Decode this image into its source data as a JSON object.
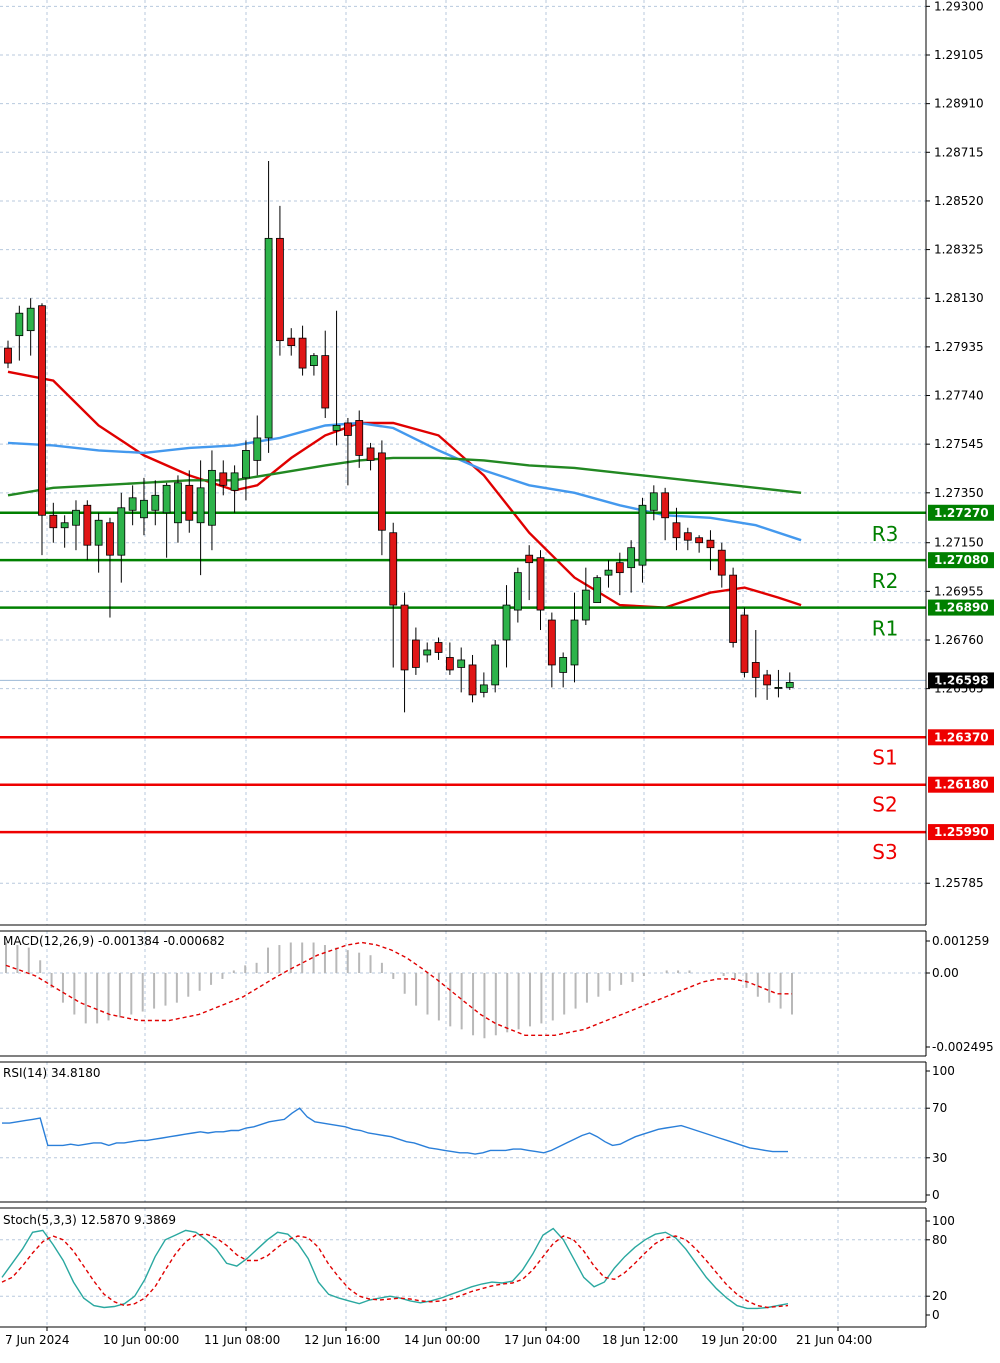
{
  "chart_data": {
    "type": "candlestick",
    "symbol_timeframe": "",
    "price_axis": {
      "ticks": [
        "1.29300",
        "1.29105",
        "1.28910",
        "1.28715",
        "1.28520",
        "1.28325",
        "1.28130",
        "1.27935",
        "1.27740",
        "1.27545",
        "1.27350",
        "1.27150",
        "1.26955",
        "1.26760",
        "1.26565",
        "1.25785"
      ],
      "range": [
        1.2574,
        1.2931
      ]
    },
    "time_axis": {
      "ticks": [
        "7 Jun 2024",
        "10 Jun 00:00",
        "11 Jun 08:00",
        "12 Jun 16:00",
        "14 Jun 00:00",
        "17 Jun 04:00",
        "18 Jun 12:00",
        "19 Jun 20:00",
        "21 Jun 04:00"
      ]
    },
    "current_price": {
      "label": "1.26598",
      "value": 1.26598,
      "color": "#000000"
    },
    "levels": [
      {
        "name": "R3",
        "value": 1.2727,
        "label": "1.27270",
        "color": "#008000"
      },
      {
        "name": "R2",
        "value": 1.2708,
        "label": "1.27080",
        "color": "#008000"
      },
      {
        "name": "R1",
        "value": 1.2689,
        "label": "1.26890",
        "color": "#008000"
      },
      {
        "name": "S1",
        "value": 1.2637,
        "label": "1.26370",
        "color": "#ee0000"
      },
      {
        "name": "S2",
        "value": 1.2618,
        "label": "1.26180",
        "color": "#ee0000"
      },
      {
        "name": "S3",
        "value": 1.2599,
        "label": "1.25990",
        "color": "#ee0000"
      }
    ],
    "candles": [
      [
        1.2793,
        1.2796,
        1.2785,
        1.2787
      ],
      [
        1.2798,
        1.281,
        1.2788,
        1.2807
      ],
      [
        1.28,
        1.2813,
        1.279,
        1.2809
      ],
      [
        1.281,
        1.2811,
        1.271,
        1.2726
      ],
      [
        1.2726,
        1.2731,
        1.2715,
        1.2721
      ],
      [
        1.2721,
        1.2726,
        1.2713,
        1.2723
      ],
      [
        1.2722,
        1.2732,
        1.2712,
        1.2728
      ],
      [
        1.273,
        1.2732,
        1.2708,
        1.2714
      ],
      [
        1.2714,
        1.2727,
        1.2703,
        1.2724
      ],
      [
        1.2723,
        1.2725,
        1.2685,
        1.271
      ],
      [
        1.271,
        1.2735,
        1.2699,
        1.2729
      ],
      [
        1.2728,
        1.2738,
        1.2722,
        1.2733
      ],
      [
        1.2725,
        1.2741,
        1.2718,
        1.2732
      ],
      [
        1.2728,
        1.274,
        1.2722,
        1.2734
      ],
      [
        1.2727,
        1.2739,
        1.2709,
        1.2738
      ],
      [
        1.2723,
        1.2742,
        1.2715,
        1.2739
      ],
      [
        1.2738,
        1.2744,
        1.2719,
        1.2724
      ],
      [
        1.2723,
        1.2748,
        1.2702,
        1.2737
      ],
      [
        1.2722,
        1.2752,
        1.2712,
        1.2744
      ],
      [
        1.2743,
        1.2748,
        1.2734,
        1.2738
      ],
      [
        1.2736,
        1.2746,
        1.2727,
        1.2743
      ],
      [
        1.2741,
        1.2756,
        1.2732,
        1.2752
      ],
      [
        1.2748,
        1.2766,
        1.2742,
        1.2757
      ],
      [
        1.2757,
        1.2868,
        1.2751,
        1.2837
      ],
      [
        1.2837,
        1.285,
        1.279,
        1.2796
      ],
      [
        1.2797,
        1.2801,
        1.279,
        1.2794
      ],
      [
        1.2797,
        1.2802,
        1.2782,
        1.2785
      ],
      [
        1.2786,
        1.2791,
        1.2782,
        1.279
      ],
      [
        1.279,
        1.28,
        1.2765,
        1.2769
      ],
      [
        1.276,
        1.2808,
        1.2754,
        1.2762
      ],
      [
        1.2763,
        1.2765,
        1.2738,
        1.2758
      ],
      [
        1.2764,
        1.2768,
        1.2745,
        1.275
      ],
      [
        1.2753,
        1.2755,
        1.2744,
        1.2748
      ],
      [
        1.2751,
        1.2756,
        1.271,
        1.272
      ],
      [
        1.2719,
        1.2723,
        1.2665,
        1.269
      ],
      [
        1.269,
        1.2695,
        1.2647,
        1.2664
      ],
      [
        1.2676,
        1.2681,
        1.2662,
        1.2665
      ],
      [
        1.267,
        1.2675,
        1.2667,
        1.2672
      ],
      [
        1.2675,
        1.2677,
        1.2668,
        1.2671
      ],
      [
        1.2669,
        1.2675,
        1.2662,
        1.2664
      ],
      [
        1.2665,
        1.2673,
        1.2655,
        1.2668
      ],
      [
        1.2666,
        1.267,
        1.2651,
        1.2654
      ],
      [
        1.2655,
        1.2663,
        1.2653,
        1.2658
      ],
      [
        1.2658,
        1.2676,
        1.2655,
        1.2674
      ],
      [
        1.2676,
        1.2698,
        1.2665,
        1.269
      ],
      [
        1.2688,
        1.2705,
        1.2683,
        1.2703
      ],
      [
        1.271,
        1.2714,
        1.2692,
        1.2707
      ],
      [
        1.2709,
        1.2712,
        1.268,
        1.2688
      ],
      [
        1.2684,
        1.2687,
        1.2657,
        1.2666
      ],
      [
        1.2663,
        1.2671,
        1.2657,
        1.2669
      ],
      [
        1.2666,
        1.2695,
        1.2659,
        1.2684
      ],
      [
        1.2684,
        1.2705,
        1.2682,
        1.2696
      ],
      [
        1.2691,
        1.2702,
        1.2692,
        1.2701
      ],
      [
        1.2702,
        1.2708,
        1.2697,
        1.2704
      ],
      [
        1.2707,
        1.2711,
        1.2694,
        1.2703
      ],
      [
        1.2705,
        1.2716,
        1.2695,
        1.2713
      ],
      [
        1.2706,
        1.2733,
        1.2699,
        1.273
      ],
      [
        1.2728,
        1.2738,
        1.2724,
        1.2735
      ],
      [
        1.2735,
        1.2737,
        1.2716,
        1.2725
      ],
      [
        1.2723,
        1.2729,
        1.2712,
        1.2717
      ],
      [
        1.2719,
        1.2721,
        1.2712,
        1.2716
      ],
      [
        1.2717,
        1.2718,
        1.2711,
        1.2715
      ],
      [
        1.2716,
        1.272,
        1.2704,
        1.2713
      ],
      [
        1.2712,
        1.2715,
        1.2697,
        1.2702
      ],
      [
        1.2702,
        1.2705,
        1.2673,
        1.2675
      ],
      [
        1.2686,
        1.2689,
        1.2661,
        1.2663
      ],
      [
        1.2667,
        1.268,
        1.2653,
        1.2661
      ],
      [
        1.2662,
        1.2664,
        1.2652,
        1.2658
      ],
      [
        1.2657,
        1.2664,
        1.2653,
        1.2657
      ],
      [
        1.2657,
        1.2663,
        1.2656,
        1.2659
      ]
    ],
    "moving_averages": [
      {
        "color": "#e00000",
        "points": [
          [
            0,
            1.27835
          ],
          [
            4,
            1.278
          ],
          [
            8,
            1.2762
          ],
          [
            12,
            1.275
          ],
          [
            16,
            1.2742
          ],
          [
            20,
            1.2736
          ],
          [
            22,
            1.2738
          ],
          [
            25,
            1.2749
          ],
          [
            28,
            1.2758
          ],
          [
            31,
            1.2763
          ],
          [
            34,
            1.2763
          ],
          [
            38,
            1.2758
          ],
          [
            42,
            1.2742
          ],
          [
            46,
            1.2719
          ],
          [
            50,
            1.2701
          ],
          [
            54,
            1.269
          ],
          [
            58,
            1.2689
          ],
          [
            62,
            1.2695
          ],
          [
            65,
            1.2697
          ],
          [
            68,
            1.2693
          ],
          [
            70,
            1.269
          ]
        ]
      },
      {
        "color": "#4499ee",
        "points": [
          [
            0,
            1.2755
          ],
          [
            4,
            1.2754
          ],
          [
            8,
            1.2752
          ],
          [
            12,
            1.2751
          ],
          [
            16,
            1.2753
          ],
          [
            20,
            1.2754
          ],
          [
            24,
            1.2757
          ],
          [
            28,
            1.2762
          ],
          [
            31,
            1.2763
          ],
          [
            34,
            1.2761
          ],
          [
            38,
            1.2752
          ],
          [
            42,
            1.2744
          ],
          [
            46,
            1.2738
          ],
          [
            50,
            1.2735
          ],
          [
            54,
            1.273
          ],
          [
            58,
            1.2726
          ],
          [
            62,
            1.2725
          ],
          [
            66,
            1.2722
          ],
          [
            70,
            1.2716
          ]
        ]
      },
      {
        "color": "#228822",
        "points": [
          [
            0,
            1.2734
          ],
          [
            4,
            1.2737
          ],
          [
            8,
            1.2738
          ],
          [
            12,
            1.2739
          ],
          [
            16,
            1.274
          ],
          [
            20,
            1.274
          ],
          [
            24,
            1.2743
          ],
          [
            28,
            1.2746
          ],
          [
            31,
            1.2748
          ],
          [
            34,
            1.2749
          ],
          [
            38,
            1.2749
          ],
          [
            42,
            1.2748
          ],
          [
            46,
            1.2746
          ],
          [
            50,
            1.2745
          ],
          [
            54,
            1.2743
          ],
          [
            58,
            1.2741
          ],
          [
            62,
            1.2739
          ],
          [
            66,
            1.2737
          ],
          [
            70,
            1.2735
          ]
        ]
      }
    ],
    "macd": {
      "label": "MACD(12,26,9) -0.001384 -0.000682",
      "ticks": [
        "0.001259",
        "0.00",
        "-0.002495"
      ],
      "range": [
        -0.0026,
        0.0013
      ],
      "histogram": [
        0.0012,
        0.0011,
        0.001,
        0.0005,
        -0.0005,
        -0.001,
        -0.0014,
        -0.0017,
        -0.0017,
        -0.0016,
        -0.0015,
        -0.0014,
        -0.0013,
        -0.0012,
        -0.0011,
        -0.001,
        -0.0008,
        -0.0006,
        -0.0004,
        -0.0002,
        0.0001,
        0.0003,
        0.0004,
        0.001,
        0.0011,
        0.0012,
        0.0012,
        0.0012,
        0.0011,
        0.001,
        0.0009,
        0.0008,
        0.0007,
        0.0004,
        -0.0002,
        -0.0007,
        -0.0011,
        -0.0014,
        -0.0016,
        -0.0018,
        -0.0019,
        -0.0021,
        -0.0022,
        -0.0021,
        -0.002,
        -0.0019,
        -0.0018,
        -0.0017,
        -0.0016,
        -0.0014,
        -0.0012,
        -0.001,
        -0.0008,
        -0.0006,
        -0.0004,
        -0.0003,
        -0.0001,
        0.0,
        0.0001,
        0.0001,
        0.0001,
        0.0,
        0.0,
        -0.0001,
        -0.0002,
        -0.0005,
        -0.0008,
        -0.001,
        -0.0012,
        -0.0014
      ],
      "signal": [
        0.0003,
        0.0001,
        -0.0001,
        -0.0004,
        -0.0007,
        -0.001,
        -0.0012,
        -0.0014,
        -0.0015,
        -0.0016,
        -0.0016,
        -0.0016,
        -0.0015,
        -0.0014,
        -0.0012,
        -0.001,
        -0.0008,
        -0.0005,
        -0.0002,
        0.0001,
        0.0004,
        0.0007,
        0.0009,
        0.0011,
        0.0012,
        0.0011,
        0.0009,
        0.0006,
        0.0002,
        -0.0002,
        -0.0006,
        -0.001,
        -0.0014,
        -0.0017,
        -0.0019,
        -0.0021,
        -0.0021,
        -0.0021,
        -0.002,
        -0.0019,
        -0.0017,
        -0.0015,
        -0.0013,
        -0.0011,
        -0.0009,
        -0.0007,
        -0.0005,
        -0.0003,
        -0.0002,
        -0.0002,
        -0.0003,
        -0.0005,
        -0.0007,
        -0.0007
      ]
    },
    "rsi": {
      "label": "RSI(14) 34.8180",
      "ticks": [
        "100",
        "70",
        "30",
        "0"
      ],
      "range": [
        0,
        100
      ],
      "values": [
        58,
        58,
        59,
        60,
        61,
        62,
        40,
        40,
        40,
        41,
        40,
        41,
        42,
        42,
        40,
        42,
        42,
        43,
        44,
        44,
        45,
        46,
        47,
        48,
        49,
        50,
        51,
        50,
        51,
        51,
        52,
        52,
        54,
        55,
        57,
        59,
        60,
        61,
        66,
        70,
        63,
        59,
        58,
        57,
        56,
        55,
        53,
        52,
        50,
        49,
        48,
        47,
        45,
        43,
        42,
        40,
        38,
        37,
        36,
        35,
        34,
        34,
        33,
        34,
        36,
        36,
        36,
        37,
        37,
        36,
        35,
        34,
        36,
        39,
        42,
        45,
        48,
        50,
        47,
        43,
        40,
        41,
        44,
        47,
        49,
        51,
        53,
        54,
        55,
        56,
        54,
        52,
        50,
        48,
        46,
        44,
        42,
        40,
        38,
        37,
        36,
        35,
        35,
        35
      ]
    },
    "stoch": {
      "label": "Stoch(5,3,3) 12.5870 9.3869",
      "ticks": [
        "100",
        "80",
        "20",
        "0"
      ],
      "range": [
        0,
        100
      ],
      "k": [
        40,
        55,
        70,
        88,
        90,
        75,
        58,
        35,
        18,
        10,
        8,
        9,
        12,
        20,
        38,
        62,
        80,
        85,
        90,
        88,
        80,
        70,
        55,
        52,
        60,
        70,
        80,
        88,
        86,
        76,
        60,
        35,
        22,
        18,
        15,
        12,
        16,
        18,
        20,
        18,
        15,
        13,
        15,
        18,
        22,
        26,
        30,
        33,
        35,
        34,
        36,
        48,
        65,
        85,
        92,
        80,
        60,
        40,
        30,
        35,
        50,
        62,
        72,
        80,
        86,
        88,
        82,
        70,
        55,
        40,
        28,
        18,
        10,
        7,
        7,
        8,
        10,
        12
      ],
      "d": [
        35,
        40,
        52,
        66,
        78,
        84,
        80,
        68,
        52,
        36,
        22,
        14,
        10,
        12,
        18,
        30,
        48,
        65,
        78,
        85,
        86,
        82,
        74,
        64,
        58,
        58,
        63,
        72,
        80,
        84,
        82,
        72,
        54,
        40,
        28,
        20,
        17,
        16,
        17,
        18,
        17,
        15,
        14,
        15,
        17,
        21,
        25,
        28,
        31,
        33,
        34,
        38,
        48,
        62,
        76,
        84,
        80,
        68,
        52,
        40,
        38,
        45,
        55,
        66,
        76,
        82,
        84,
        80,
        70,
        58,
        45,
        32,
        22,
        15,
        10,
        8,
        9,
        10
      ]
    }
  }
}
